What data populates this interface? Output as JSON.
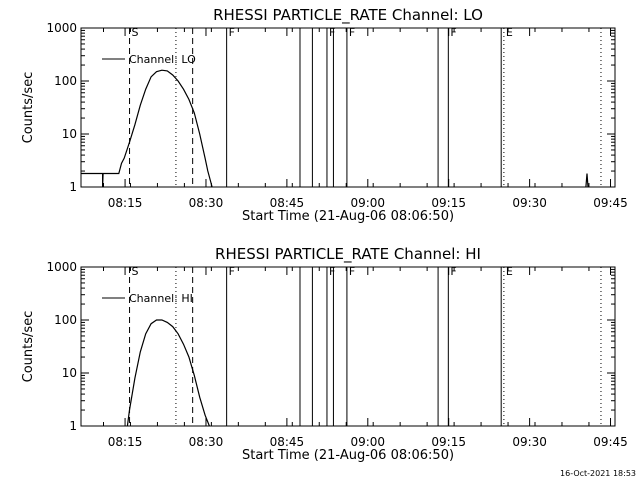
{
  "footer": {
    "timestamp": "16-Oct-2021 18:53"
  },
  "chart_data": [
    {
      "type": "line",
      "title": "RHESSI PARTICLE_RATE Channel: LO",
      "xlabel": "Start Time (21-Aug-06 08:06:50)",
      "ylabel": "Counts/sec",
      "y_scale": "log",
      "ylim": [
        1,
        1000
      ],
      "y_ticks": [
        1,
        10,
        100,
        1000
      ],
      "y_tick_labels": [
        "1",
        "10",
        "100",
        "1000"
      ],
      "x_range_min": [
        0,
        99
      ],
      "x_ticks_min": [
        8.17,
        23.17,
        38.17,
        53.17,
        68.17,
        83.17,
        98.17
      ],
      "x_tick_labels": [
        "08:15",
        "08:30",
        "08:45",
        "09:00",
        "09:15",
        "09:30",
        "09:45"
      ],
      "legend": {
        "label": "Channel: LO",
        "placement": "top-left"
      },
      "grid": false,
      "series": [
        {
          "name": "Channel: LO",
          "x": [
            0,
            4,
            4,
            4.1,
            7,
            7.5,
            8,
            9,
            10,
            11,
            12,
            13,
            14,
            15,
            16,
            17,
            18,
            19,
            20,
            21,
            22,
            23,
            23.5,
            24,
            24.3
          ],
          "y": [
            1.8,
            1.8,
            1.0,
            1.8,
            1.8,
            2.8,
            3.5,
            7,
            15,
            35,
            70,
            120,
            150,
            160,
            155,
            130,
            100,
            70,
            45,
            25,
            10,
            3.5,
            2,
            1.3,
            1.0
          ]
        },
        {
          "name": "spike",
          "x": [
            93.6,
            93.8,
            94.0
          ],
          "y": [
            1.0,
            1.8,
            1.0
          ]
        }
      ],
      "vlines": [
        {
          "x": 9.0,
          "style": "dashed",
          "label": "S"
        },
        {
          "x": 17.6,
          "style": "dotted",
          "label": ""
        },
        {
          "x": 20.7,
          "style": "dashed",
          "label": ""
        },
        {
          "x": 27.0,
          "style": "solid",
          "label": "F"
        },
        {
          "x": 40.6,
          "style": "solid",
          "label": ""
        },
        {
          "x": 42.9,
          "style": "solid",
          "label": ""
        },
        {
          "x": 45.6,
          "style": "solid",
          "label": "F"
        },
        {
          "x": 46.8,
          "style": "solid",
          "label": ""
        },
        {
          "x": 49.3,
          "style": "solid",
          "label": "F"
        },
        {
          "x": 66.2,
          "style": "solid",
          "label": ""
        },
        {
          "x": 68.1,
          "style": "solid",
          "label": "F"
        },
        {
          "x": 77.9,
          "style": "solid",
          "label": ""
        },
        {
          "x": 78.4,
          "style": "dotted",
          "label": "E"
        },
        {
          "x": 96.4,
          "style": "dotted",
          "label": ""
        }
      ]
    },
    {
      "type": "line",
      "title": "RHESSI PARTICLE_RATE Channel: HI",
      "xlabel": "Start Time (21-Aug-06 08:06:50)",
      "ylabel": "Counts/sec",
      "y_scale": "log",
      "ylim": [
        1,
        1000
      ],
      "y_ticks": [
        1,
        10,
        100,
        1000
      ],
      "y_tick_labels": [
        "1",
        "10",
        "100",
        "1000"
      ],
      "x_range_min": [
        0,
        99
      ],
      "x_ticks_min": [
        8.17,
        23.17,
        38.17,
        53.17,
        68.17,
        83.17,
        98.17
      ],
      "x_tick_labels": [
        "08:15",
        "08:30",
        "08:45",
        "09:00",
        "09:15",
        "09:30",
        "09:45"
      ],
      "legend": {
        "label": "Channel: HI",
        "placement": "top-left"
      },
      "grid": false,
      "series": [
        {
          "name": "Channel: HI",
          "x": [
            8.6,
            9,
            10,
            11,
            12,
            13,
            14,
            15,
            16,
            17,
            18,
            19,
            20,
            21,
            22,
            23,
            23.8
          ],
          "y": [
            1.0,
            2,
            8,
            25,
            55,
            85,
            100,
            100,
            90,
            75,
            55,
            35,
            20,
            9,
            3.5,
            1.6,
            1.0
          ]
        }
      ],
      "vlines": [
        {
          "x": 9.0,
          "style": "dashed",
          "label": "S"
        },
        {
          "x": 17.6,
          "style": "dotted",
          "label": ""
        },
        {
          "x": 20.7,
          "style": "dashed",
          "label": ""
        },
        {
          "x": 27.0,
          "style": "solid",
          "label": "F"
        },
        {
          "x": 40.6,
          "style": "solid",
          "label": ""
        },
        {
          "x": 42.9,
          "style": "solid",
          "label": ""
        },
        {
          "x": 45.6,
          "style": "solid",
          "label": "F"
        },
        {
          "x": 46.8,
          "style": "solid",
          "label": ""
        },
        {
          "x": 49.3,
          "style": "solid",
          "label": "F"
        },
        {
          "x": 66.2,
          "style": "solid",
          "label": ""
        },
        {
          "x": 68.1,
          "style": "solid",
          "label": "F"
        },
        {
          "x": 77.9,
          "style": "solid",
          "label": ""
        },
        {
          "x": 78.4,
          "style": "dotted",
          "label": "E"
        },
        {
          "x": 96.4,
          "style": "dotted",
          "label": ""
        }
      ]
    }
  ]
}
